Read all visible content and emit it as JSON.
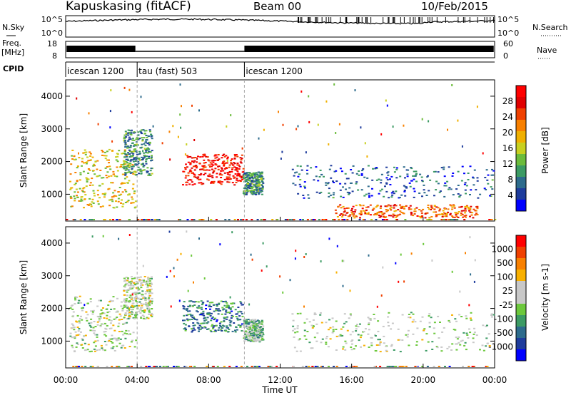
{
  "header": {
    "station": "Kapuskasing (fitACF)",
    "beam": "Beam 00",
    "date": "10/Feb/2015"
  },
  "top_panels": {
    "nsky_label": "N.Sky",
    "nsky_ticks": [
      "10^5",
      "10^0"
    ],
    "nsearch_label": "N.Search",
    "nsearch_ticks": [
      "10^5",
      "10^0"
    ],
    "freq_label": "Freq.",
    "freq_unit": "[MHz]",
    "freq_ticks": [
      "18",
      "8"
    ],
    "nave_label": "Nave",
    "nave_ticks": [
      "60",
      "0"
    ],
    "cpid_label": "CPID",
    "cpid_segments": [
      {
        "label": "icescan 1200",
        "start": 0,
        "end": 4
      },
      {
        "label": "tau (fast) 503",
        "start": 4,
        "end": 10
      },
      {
        "label": "icescan 1200",
        "start": 10,
        "end": 24
      }
    ]
  },
  "chart_data": [
    {
      "type": "heatmap",
      "name": "power",
      "ylabel": "Slant Range [km]",
      "xlabel": "",
      "xlim": [
        0,
        24
      ],
      "ylim": [
        180,
        4500
      ],
      "yticks": [
        1000,
        2000,
        3000,
        4000
      ],
      "colorbar_label": "Power [dB]",
      "colorbar_ticks": [
        "28",
        "24",
        "20",
        "16",
        "12",
        "8",
        "4"
      ],
      "colorbar_colors": [
        "#0000ff",
        "#1e3c9c",
        "#2d6b8c",
        "#3c9b64",
        "#6cbc3c",
        "#c8d020",
        "#f0b000",
        "#f88000",
        "#f04000",
        "#e00000",
        "#ff0000"
      ],
      "regions": [
        {
          "t0": 0.2,
          "t1": 3.9,
          "r0": 600,
          "r1": 2400,
          "level": 0.55
        },
        {
          "t0": 3.2,
          "t1": 4.8,
          "r0": 1600,
          "r1": 3000,
          "level": 0.3
        },
        {
          "t0": 6.5,
          "t1": 9.9,
          "r0": 1300,
          "r1": 2250,
          "level": 0.9
        },
        {
          "t0": 9.9,
          "t1": 11.0,
          "r0": 1000,
          "r1": 1700,
          "level": 0.3
        },
        {
          "t0": 12.6,
          "t1": 23.9,
          "r0": 900,
          "r1": 1900,
          "level": 0.2
        },
        {
          "t0": 15.0,
          "t1": 23.0,
          "r0": 300,
          "r1": 700,
          "level": 0.75
        }
      ]
    },
    {
      "type": "heatmap",
      "name": "velocity",
      "ylabel": "Slant Range [km]",
      "xlabel": "Time UT",
      "xlim": [
        0,
        24
      ],
      "ylim": [
        180,
        4500
      ],
      "xticks": [
        "00:00",
        "04:00",
        "08:00",
        "12:00",
        "16:00",
        "20:00",
        "00:00"
      ],
      "yticks": [
        1000,
        2000,
        3000,
        4000
      ],
      "colorbar_label": "Velocity [m s-1]",
      "colorbar_ticks": [
        "1000",
        "500",
        "100",
        "25",
        "-25",
        "-100",
        "-500",
        "-1000"
      ],
      "colorbar_colors": [
        "#0000ff",
        "#1e3c9c",
        "#2d6b8c",
        "#3c9b64",
        "#6cc83c",
        "#c8c8c8",
        "#c8c8c8",
        "#f8b000",
        "#f88000",
        "#f04000",
        "#ff0000"
      ],
      "regions": [
        {
          "t0": 0.2,
          "t1": 3.9,
          "r0": 700,
          "r1": 2400,
          "level": 0.5
        },
        {
          "t0": 3.2,
          "t1": 4.8,
          "r0": 1700,
          "r1": 3000,
          "level": 0.5
        },
        {
          "t0": 6.5,
          "t1": 9.9,
          "r0": 1300,
          "r1": 2250,
          "level": 0.25
        },
        {
          "t0": 9.9,
          "t1": 11.0,
          "r0": 1000,
          "r1": 1700,
          "level": 0.4
        },
        {
          "t0": 12.6,
          "t1": 23.9,
          "r0": 700,
          "r1": 1900,
          "level": 0.5
        }
      ]
    }
  ]
}
